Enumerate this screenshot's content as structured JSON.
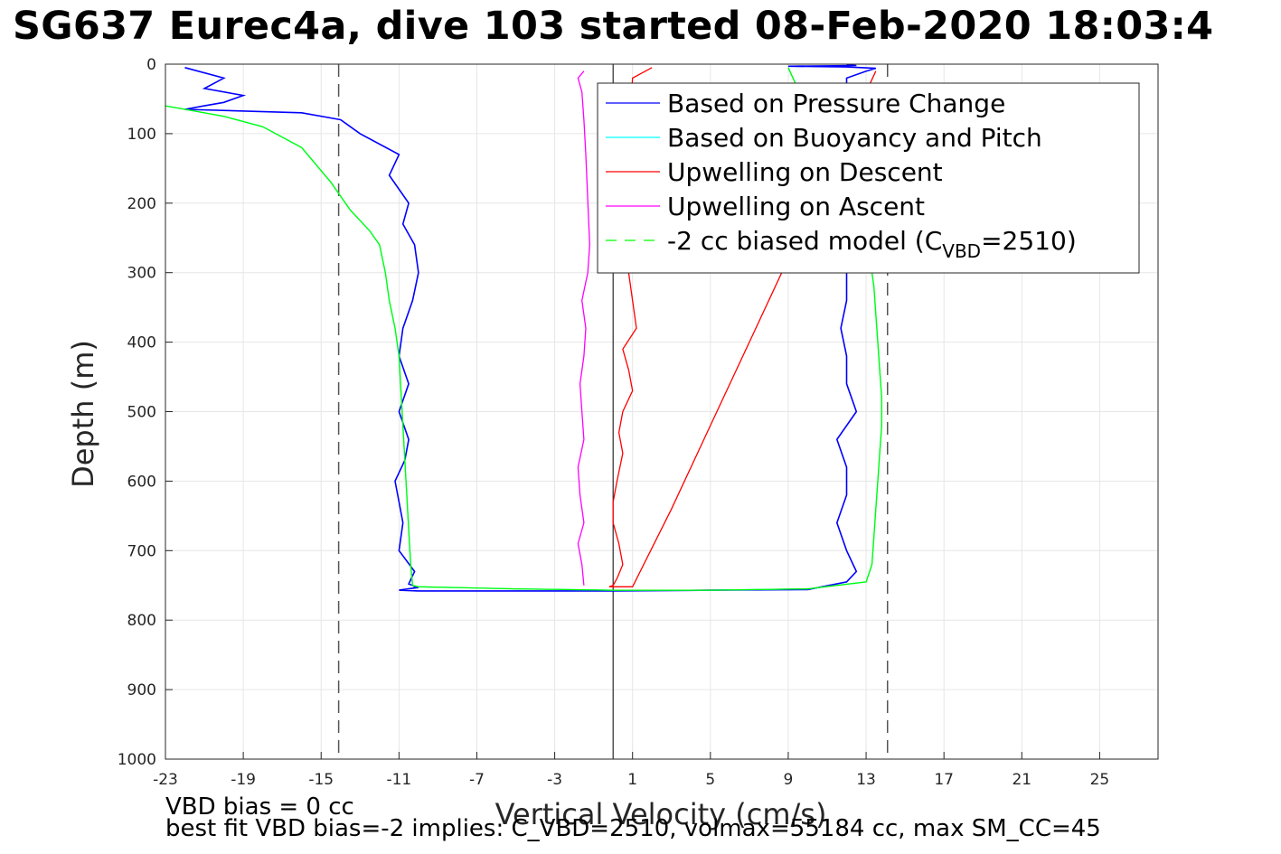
{
  "title": "SG637 Eurec4a, dive 103 started 08-Feb-2020 18:03:4",
  "footer": {
    "line1": "VBD bias = 0 cc",
    "line2": "best fit VBD bias=-2 implies: C_VBD=2510, volmax=55184 cc, max SM_CC=45"
  },
  "chart_data": {
    "type": "line",
    "xlabel": "Vertical Velocity (cm/s)",
    "ylabel": "Depth (m)",
    "xlim": [
      -23,
      28
    ],
    "ylim": [
      0,
      1000
    ],
    "y_reversed": true,
    "grid": true,
    "xticks": [
      -23,
      -19,
      -15,
      -11,
      -7,
      -3,
      1,
      5,
      9,
      13,
      17,
      21,
      25
    ],
    "yticks": [
      0,
      100,
      200,
      300,
      400,
      500,
      600,
      700,
      800,
      900,
      1000
    ],
    "legend_position": "top-right",
    "colors": {
      "pressure": "#0000ff",
      "buoyancy": "#00ffff",
      "up_descent": "#ff0000",
      "up_ascent": "#ff00ff",
      "model": "#00ff00",
      "reference": "#000000"
    },
    "legend": [
      {
        "label": "Based on Pressure Change",
        "color": "#0000ff",
        "style": "solid"
      },
      {
        "label": "Based on Buoyancy and Pitch",
        "color": "#00ffff",
        "style": "solid"
      },
      {
        "label": "Upwelling on Descent",
        "color": "#ff0000",
        "style": "solid"
      },
      {
        "label": "Upwelling on Ascent",
        "color": "#ff00ff",
        "style": "solid"
      },
      {
        "label_prefix": "-2 cc biased model (C",
        "label_sub": "VBD",
        "label_suffix": "=2510)",
        "color": "#00ff00",
        "style": "dashed"
      }
    ],
    "reference_lines": {
      "vertical_solid_x": 0,
      "vertical_dashed_x": [
        -14.1,
        14.1
      ]
    },
    "series": [
      {
        "name": "Based on Pressure Change",
        "color": "#0000ff",
        "x": [
          -22,
          -20,
          -21,
          -19,
          -20,
          -21,
          -22,
          -16,
          -14,
          -13,
          -11,
          -11.5,
          -10.5,
          -10.8,
          -10.2,
          -10,
          -10.3,
          -10.8,
          -11,
          -10.5,
          -11,
          -10.5,
          -10.7,
          -11.2,
          -11,
          -10.8,
          -11,
          -10.2,
          -10.5,
          -10.3,
          -10.2,
          -10,
          -10.5,
          -10.8,
          -11,
          -10,
          -5,
          0,
          5,
          10,
          12,
          12.5,
          12,
          11.5,
          12,
          12,
          11.5,
          12.5,
          12,
          12,
          11.7,
          12,
          12,
          12,
          12,
          12.5,
          12.5,
          12,
          11.5,
          12,
          12,
          13,
          13.5,
          12,
          9,
          12.5,
          12
        ],
        "y": [
          5,
          20,
          35,
          45,
          55,
          60,
          65,
          70,
          80,
          100,
          130,
          160,
          200,
          230,
          260,
          300,
          340,
          380,
          420,
          460,
          500,
          540,
          570,
          600,
          630,
          660,
          700,
          730,
          748,
          750,
          752,
          753,
          755,
          756,
          757,
          758,
          758,
          758,
          757,
          756,
          745,
          730,
          700,
          660,
          620,
          580,
          540,
          500,
          460,
          420,
          380,
          340,
          300,
          260,
          220,
          180,
          140,
          100,
          70,
          40,
          20,
          10,
          6,
          4,
          3,
          2,
          1
        ]
      },
      {
        "name": "Based on Buoyancy and Pitch",
        "color": "#00ffff",
        "x": [
          -23,
          -22,
          -20,
          -18,
          -16,
          -14.5,
          -13.5,
          -12.5,
          -12,
          -11.7,
          -11.5,
          -11.2,
          -11,
          -10.9,
          -10.8,
          -10.7,
          -10.6,
          -10.5,
          -10.4,
          -10.3,
          -10,
          -5,
          0,
          5,
          10,
          13,
          13.3,
          13.4,
          13.5,
          13.6,
          13.7,
          13.8,
          13.8,
          13.7,
          13.6,
          13.5,
          13.4,
          13.3,
          13,
          9
        ],
        "y": [
          60,
          65,
          75,
          90,
          120,
          170,
          210,
          240,
          260,
          300,
          340,
          380,
          420,
          470,
          520,
          570,
          620,
          670,
          720,
          750,
          752,
          755,
          757,
          757,
          755,
          745,
          720,
          680,
          640,
          600,
          560,
          520,
          480,
          440,
          400,
          360,
          320,
          300,
          250,
          5
        ]
      },
      {
        "name": "Upwelling on Descent",
        "color": "#ff0000",
        "x": [
          2,
          1,
          0.5,
          0.8,
          1,
          1.2,
          0.5,
          0.8,
          1,
          0.5,
          0.3,
          0.5,
          0.2,
          0,
          0,
          0.3,
          0.5,
          0.2,
          0,
          -0.2,
          0,
          -0.2,
          1,
          3,
          5,
          7,
          9,
          11,
          13,
          13.5
        ],
        "y": [
          5,
          20,
          260,
          300,
          340,
          380,
          410,
          440,
          470,
          500,
          530,
          560,
          600,
          630,
          660,
          690,
          720,
          740,
          750,
          752,
          752,
          752,
          752,
          640,
          520,
          400,
          280,
          160,
          40,
          10
        ]
      },
      {
        "name": "Upwelling on Ascent",
        "color": "#ff00ff",
        "x": [
          -1.5,
          -1.6,
          -1.8,
          -1.5,
          -1.7,
          -1.8,
          -1.5,
          -1.6,
          -1.7,
          -1.5,
          -1.4,
          -1.6,
          -1.3,
          -1.2,
          -1.4,
          -1.5,
          -1.6,
          -1.8,
          -1.5
        ],
        "y": [
          750,
          720,
          690,
          660,
          620,
          580,
          540,
          500,
          460,
          420,
          380,
          340,
          300,
          260,
          130,
          80,
          40,
          20,
          10
        ]
      },
      {
        "name": "-2 cc biased model (C_VBD=2510)",
        "color": "#00ff00",
        "x": [
          -23,
          -22,
          -20,
          -18,
          -16,
          -14.5,
          -13.5,
          -12.5,
          -12,
          -11.7,
          -11.5,
          -11.2,
          -11,
          -10.9,
          -10.8,
          -10.7,
          -10.6,
          -10.5,
          -10.4,
          -10.3,
          -10,
          -5,
          0,
          5,
          10,
          13,
          13.3,
          13.4,
          13.5,
          13.6,
          13.7,
          13.8,
          13.8,
          13.7,
          13.6,
          13.5,
          13.4,
          13.3,
          13,
          9
        ],
        "y": [
          60,
          65,
          75,
          90,
          120,
          170,
          210,
          240,
          260,
          300,
          340,
          380,
          420,
          470,
          520,
          570,
          620,
          670,
          720,
          750,
          752,
          755,
          757,
          757,
          755,
          745,
          720,
          680,
          640,
          600,
          560,
          520,
          480,
          440,
          400,
          360,
          320,
          300,
          250,
          5
        ]
      }
    ]
  }
}
